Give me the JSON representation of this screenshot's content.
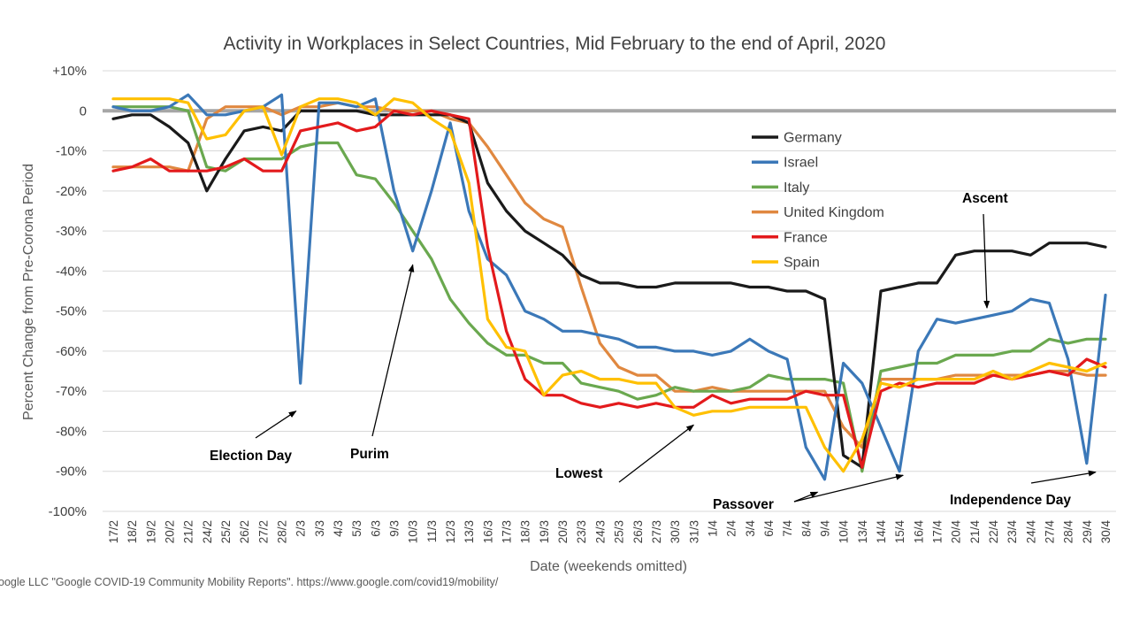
{
  "chart_data": {
    "type": "line",
    "title": "Activity in Workplaces in Select Countries, Mid February to the end of April, 2020",
    "xlabel": "Date (weekends omitted)",
    "ylabel": "Percent Change from Pre-Corona Period",
    "ylim": [
      -100,
      10
    ],
    "yticks": [
      "+10%",
      "0",
      "-10%",
      "-20%",
      "-30%",
      "-40%",
      "-50%",
      "-60%",
      "-70%",
      "-80%",
      "-90%",
      "-100%"
    ],
    "grid": "horizontal",
    "legend_position": "inside-upper-right",
    "categories": [
      "17/2",
      "18/2",
      "19/2",
      "20/2",
      "21/2",
      "24/2",
      "25/2",
      "26/2",
      "27/2",
      "28/2",
      "2/3",
      "3/3",
      "4/3",
      "5/3",
      "6/3",
      "9/3",
      "10/3",
      "11/3",
      "12/3",
      "13/3",
      "16/3",
      "17/3",
      "18/3",
      "19/3",
      "20/3",
      "23/3",
      "24/3",
      "25/3",
      "26/3",
      "27/3",
      "30/3",
      "31/3",
      "1/4",
      "2/4",
      "3/4",
      "6/4",
      "7/4",
      "8/4",
      "9/4",
      "10/4",
      "13/4",
      "14/4",
      "15/4",
      "16/4",
      "17/4",
      "20/4",
      "21/4",
      "22/4",
      "23/4",
      "24/4",
      "27/4",
      "28/4",
      "29/4",
      "30/4"
    ],
    "series": [
      {
        "name": "Germany",
        "color": "#1a1a1a",
        "values": [
          -2,
          -1,
          -1,
          -4,
          -8,
          -20,
          -12,
          -5,
          -4,
          -5,
          0,
          0,
          0,
          0,
          -1,
          -1,
          -1,
          -1,
          -1,
          -3,
          -18,
          -25,
          -30,
          -33,
          -36,
          -41,
          -43,
          -43,
          -44,
          -44,
          -43,
          -43,
          -43,
          -43,
          -44,
          -44,
          -45,
          -45,
          -47,
          -86,
          -89,
          -45,
          -44,
          -43,
          -43,
          -36,
          -35,
          -35,
          -35,
          -36,
          -33,
          -33,
          -33,
          -34
        ]
      },
      {
        "name": "Israel",
        "color": "#3b78b8",
        "values": [
          1,
          0,
          0,
          1,
          4,
          -1,
          -1,
          0,
          1,
          4,
          -68,
          2,
          2,
          1,
          3,
          -20,
          -35,
          -20,
          -3,
          -25,
          -37,
          -41,
          -50,
          -52,
          -55,
          -55,
          -56,
          -57,
          -59,
          -59,
          -60,
          -60,
          -61,
          -60,
          -57,
          -60,
          -62,
          -84,
          -92,
          -63,
          -68,
          -79,
          -90,
          -60,
          -52,
          -53,
          -52,
          -51,
          -50,
          -47,
          -48,
          -62,
          -88,
          -46
        ]
      },
      {
        "name": "Italy",
        "color": "#6aa84f",
        "values": [
          1,
          1,
          1,
          1,
          0,
          -14,
          -15,
          -12,
          -12,
          -12,
          -9,
          -8,
          -8,
          -16,
          -17,
          -23,
          -30,
          -37,
          -47,
          -53,
          -58,
          -61,
          -61,
          -63,
          -63,
          -68,
          -69,
          -70,
          -72,
          -71,
          -69,
          -70,
          -70,
          -70,
          -69,
          -66,
          -67,
          -67,
          -67,
          -68,
          -90,
          -65,
          -64,
          -63,
          -63,
          -61,
          -61,
          -61,
          -60,
          -60,
          -57,
          -58,
          -57,
          -57
        ]
      },
      {
        "name": "United Kingdom",
        "color": "#e08840",
        "values": [
          -14,
          -14,
          -14,
          -14,
          -15,
          -2,
          1,
          1,
          1,
          -1,
          1,
          1,
          2,
          1,
          1,
          0,
          0,
          0,
          -2,
          -3,
          -9,
          -16,
          -23,
          -27,
          -29,
          -44,
          -58,
          -64,
          -66,
          -66,
          -70,
          -70,
          -69,
          -70,
          -70,
          -70,
          -70,
          -70,
          -70,
          -79,
          -84,
          -67,
          -67,
          -67,
          -67,
          -66,
          -66,
          -66,
          -66,
          -66,
          -65,
          -65,
          -66,
          -66
        ]
      },
      {
        "name": "France",
        "color": "#e31a1c",
        "values": [
          -15,
          -14,
          -12,
          -15,
          -15,
          -15,
          -14,
          -12,
          -15,
          -15,
          -5,
          -4,
          -3,
          -5,
          -4,
          0,
          -1,
          0,
          -1,
          -2,
          -34,
          -55,
          -67,
          -71,
          -71,
          -73,
          -74,
          -73,
          -74,
          -73,
          -74,
          -74,
          -71,
          -73,
          -72,
          -72,
          -72,
          -70,
          -71,
          -71,
          -89,
          -70,
          -68,
          -69,
          -68,
          -68,
          -68,
          -66,
          -67,
          -66,
          -65,
          -66,
          -62,
          -64
        ]
      },
      {
        "name": "Spain",
        "color": "#ffc000",
        "values": [
          3,
          3,
          3,
          3,
          2,
          -7,
          -6,
          0,
          1,
          -11,
          1,
          3,
          3,
          2,
          -1,
          3,
          2,
          -2,
          -5,
          -18,
          -52,
          -59,
          -60,
          -71,
          -66,
          -65,
          -67,
          -67,
          -68,
          -68,
          -74,
          -76,
          -75,
          -75,
          -74,
          -74,
          -74,
          -74,
          -84,
          -90,
          -82,
          -68,
          -69,
          -67,
          -67,
          -67,
          -67,
          -65,
          -67,
          -65,
          -63,
          -64,
          -65,
          -63
        ]
      }
    ],
    "annotations": [
      {
        "text": "Election Day",
        "target_x": "2/3",
        "target_y": -71
      },
      {
        "text": "Purim",
        "target_x": "10/3",
        "target_y": -38
      },
      {
        "text": "Lowest",
        "target_x": "31/3",
        "target_y": -78
      },
      {
        "text": "Passover",
        "target_x": "9/4",
        "target_y": -93
      },
      {
        "text": "Ascent",
        "target_x": "21/4",
        "target_y": -49
      },
      {
        "text": "Independence Day",
        "target_x": "29/4",
        "target_y": -90
      }
    ],
    "source": "oogle LLC \"Google COVID-19 Community Mobility Reports\". https://www.google.com/covid19/mobility/"
  }
}
